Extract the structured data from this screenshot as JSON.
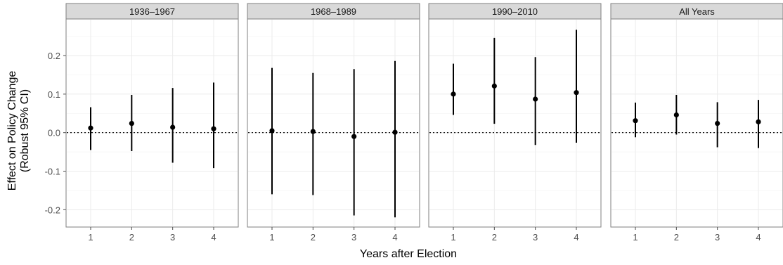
{
  "chart_data": {
    "type": "scatter",
    "subtype": "point-range faceted",
    "xlabel": "Years after Election",
    "ylabel_line1": "Effect on Policy Change",
    "ylabel_line2": "(Robust 95% CI)",
    "ylim": [
      -0.245,
      0.295
    ],
    "xlim": [
      0.4,
      4.6
    ],
    "y_ticks": [
      -0.2,
      -0.1,
      0.0,
      0.1,
      0.2
    ],
    "y_tick_labels": [
      "-0.2",
      "-0.1",
      "0.0",
      "0.1",
      "0.2"
    ],
    "x_ticks": [
      1,
      2,
      3,
      4
    ],
    "x_tick_labels": [
      "1",
      "2",
      "3",
      "4"
    ],
    "reference_line": 0,
    "grid": true,
    "colors": {
      "strip": "#d9d9d9",
      "grid": "#ebebeb",
      "point": "#000000",
      "frame": "#7f7f7f"
    },
    "facets": [
      {
        "name": "1936–1967",
        "points": [
          {
            "x": 1,
            "y": 0.012,
            "lo": -0.045,
            "hi": 0.066
          },
          {
            "x": 2,
            "y": 0.024,
            "lo": -0.048,
            "hi": 0.098
          },
          {
            "x": 3,
            "y": 0.014,
            "lo": -0.078,
            "hi": 0.116
          },
          {
            "x": 4,
            "y": 0.01,
            "lo": -0.092,
            "hi": 0.13
          }
        ]
      },
      {
        "name": "1968–1989",
        "points": [
          {
            "x": 1,
            "y": 0.005,
            "lo": -0.16,
            "hi": 0.168
          },
          {
            "x": 2,
            "y": 0.003,
            "lo": -0.162,
            "hi": 0.155
          },
          {
            "x": 3,
            "y": -0.01,
            "lo": -0.215,
            "hi": 0.165
          },
          {
            "x": 4,
            "y": 0.001,
            "lo": -0.22,
            "hi": 0.186
          }
        ]
      },
      {
        "name": "1990–2010",
        "points": [
          {
            "x": 1,
            "y": 0.1,
            "lo": 0.046,
            "hi": 0.179
          },
          {
            "x": 2,
            "y": 0.121,
            "lo": 0.023,
            "hi": 0.246
          },
          {
            "x": 3,
            "y": 0.087,
            "lo": -0.032,
            "hi": 0.196
          },
          {
            "x": 4,
            "y": 0.104,
            "lo": -0.026,
            "hi": 0.267
          }
        ]
      },
      {
        "name": "All Years",
        "points": [
          {
            "x": 1,
            "y": 0.031,
            "lo": -0.012,
            "hi": 0.078
          },
          {
            "x": 2,
            "y": 0.046,
            "lo": -0.005,
            "hi": 0.098
          },
          {
            "x": 3,
            "y": 0.024,
            "lo": -0.038,
            "hi": 0.079
          },
          {
            "x": 4,
            "y": 0.028,
            "lo": -0.04,
            "hi": 0.085
          }
        ]
      }
    ]
  }
}
